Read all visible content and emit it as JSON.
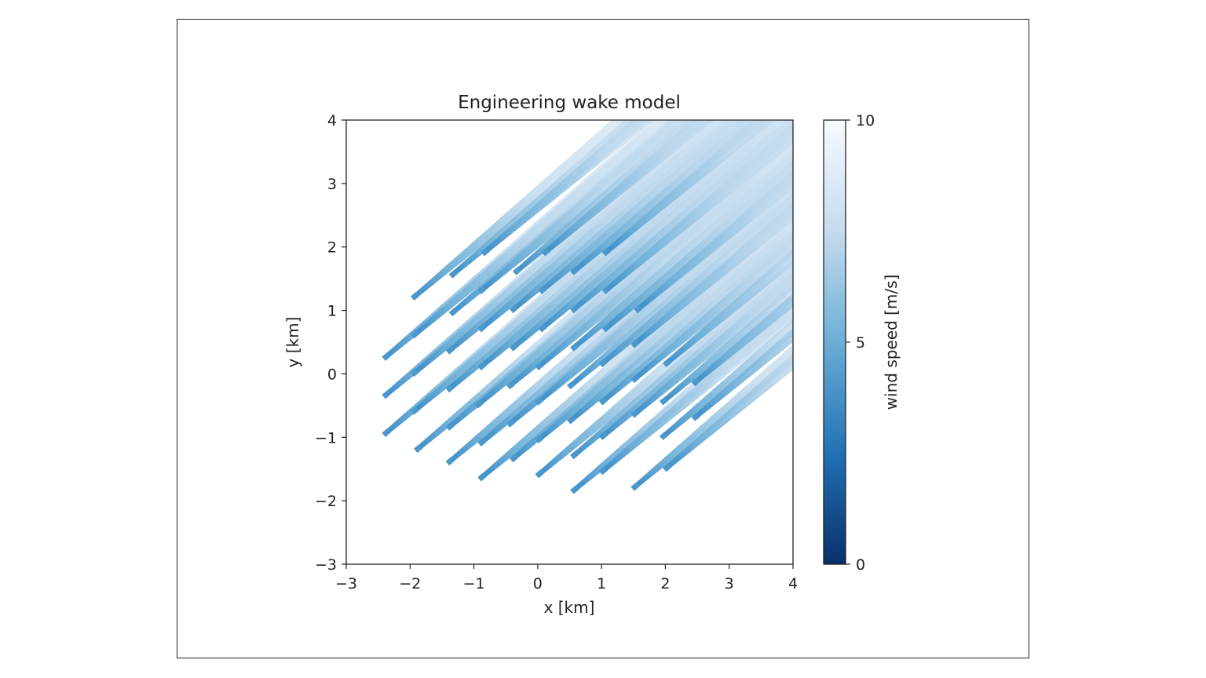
{
  "chart_data": {
    "type": "heatmap",
    "title": "Engineering wake model",
    "xlabel": "x [km]",
    "ylabel": "y [km]",
    "xlim": [
      -3,
      4
    ],
    "ylim": [
      -3,
      4
    ],
    "xticks": [
      -3,
      -2,
      -1,
      0,
      1,
      2,
      3,
      4
    ],
    "yticks": [
      -3,
      -2,
      -1,
      0,
      1,
      2,
      3,
      4
    ],
    "grid": false,
    "colorbar": {
      "label": "wind speed [m/s]",
      "range": [
        0,
        10
      ],
      "ticks": [
        0,
        5,
        10
      ],
      "colormap": "Blues_r",
      "color_low": "#08306b",
      "color_mid": "#6baed6",
      "color_high": "#f7fbff"
    },
    "wake_direction_deg": 40,
    "turbines": [
      [
        -2.4,
        0.25
      ],
      [
        -2.4,
        -0.35
      ],
      [
        -2.4,
        -0.95
      ],
      [
        -1.95,
        1.2
      ],
      [
        -1.95,
        0.6
      ],
      [
        -1.95,
        0.0
      ],
      [
        -1.95,
        -0.6
      ],
      [
        -1.9,
        -1.2
      ],
      [
        -1.35,
        1.55
      ],
      [
        -1.35,
        0.95
      ],
      [
        -1.4,
        0.35
      ],
      [
        -1.4,
        -0.25
      ],
      [
        -1.4,
        -0.85
      ],
      [
        -1.4,
        -1.4
      ],
      [
        -0.85,
        1.9
      ],
      [
        -0.9,
        1.3
      ],
      [
        -0.9,
        0.7
      ],
      [
        -0.9,
        0.1
      ],
      [
        -0.95,
        -0.5
      ],
      [
        -0.9,
        -1.1
      ],
      [
        -0.9,
        -1.65
      ],
      [
        -0.35,
        1.6
      ],
      [
        -0.4,
        1.0
      ],
      [
        -0.4,
        0.4
      ],
      [
        -0.45,
        -0.2
      ],
      [
        -0.45,
        -0.8
      ],
      [
        -0.4,
        -1.35
      ],
      [
        0.1,
        1.9
      ],
      [
        0.05,
        1.3
      ],
      [
        0.05,
        0.7
      ],
      [
        0.0,
        0.1
      ],
      [
        0.0,
        -0.45
      ],
      [
        0.0,
        -1.05
      ],
      [
        0.0,
        -1.6
      ],
      [
        0.55,
        1.6
      ],
      [
        0.55,
        1.0
      ],
      [
        0.55,
        0.4
      ],
      [
        0.5,
        -0.2
      ],
      [
        0.5,
        -0.75
      ],
      [
        0.55,
        -1.3
      ],
      [
        0.55,
        -1.85
      ],
      [
        1.05,
        1.9
      ],
      [
        1.05,
        1.3
      ],
      [
        1.05,
        0.7
      ],
      [
        1.0,
        0.15
      ],
      [
        1.0,
        -0.45
      ],
      [
        1.0,
        -1.0
      ],
      [
        1.0,
        -1.55
      ],
      [
        1.55,
        1.0
      ],
      [
        1.5,
        0.45
      ],
      [
        1.5,
        -0.1
      ],
      [
        1.5,
        -0.65
      ],
      [
        1.5,
        -1.8
      ],
      [
        2.0,
        0.15
      ],
      [
        1.95,
        -0.45
      ],
      [
        1.95,
        -1.0
      ],
      [
        2.0,
        -1.5
      ],
      [
        2.45,
        -0.15
      ],
      [
        2.45,
        -0.7
      ]
    ]
  }
}
